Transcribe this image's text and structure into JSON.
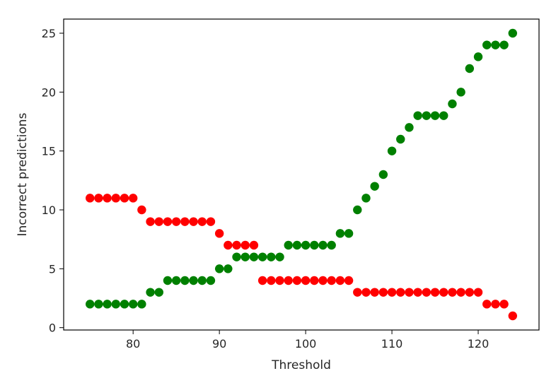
{
  "chart_data": {
    "type": "scatter",
    "title": "",
    "xlabel": "Threshold",
    "ylabel": "Incorrect predictions",
    "xlim": [
      71.95,
      127.05
    ],
    "ylim": [
      -0.2,
      26.2
    ],
    "xticks": [
      80,
      90,
      100,
      110,
      120
    ],
    "yticks": [
      0,
      5,
      10,
      15,
      20,
      25
    ],
    "grid": false,
    "x": [
      75,
      76,
      77,
      78,
      79,
      80,
      81,
      82,
      83,
      84,
      85,
      86,
      87,
      88,
      89,
      90,
      91,
      92,
      93,
      94,
      95,
      96,
      97,
      98,
      99,
      100,
      101,
      102,
      103,
      104,
      105,
      106,
      107,
      108,
      109,
      110,
      111,
      112,
      113,
      114,
      115,
      116,
      117,
      118,
      119,
      120,
      121,
      122,
      123,
      124
    ],
    "series": [
      {
        "color": "#ff0000",
        "values": [
          11,
          11,
          11,
          11,
          11,
          11,
          10,
          9,
          9,
          9,
          9,
          9,
          9,
          9,
          9,
          8,
          7,
          7,
          7,
          7,
          4,
          4,
          4,
          4,
          4,
          4,
          4,
          4,
          4,
          4,
          4,
          3,
          3,
          3,
          3,
          3,
          3,
          3,
          3,
          3,
          3,
          3,
          3,
          3,
          3,
          3,
          2,
          2,
          2,
          1
        ]
      },
      {
        "color": "#008000",
        "values": [
          2,
          2,
          2,
          2,
          2,
          2,
          2,
          3,
          3,
          4,
          4,
          4,
          4,
          4,
          4,
          5,
          5,
          6,
          6,
          6,
          6,
          6,
          6,
          7,
          7,
          7,
          7,
          7,
          7,
          8,
          8,
          10,
          11,
          12,
          13,
          15,
          16,
          17,
          18,
          18,
          18,
          18,
          19,
          20,
          22,
          23,
          24,
          24,
          24,
          25
        ]
      }
    ]
  }
}
